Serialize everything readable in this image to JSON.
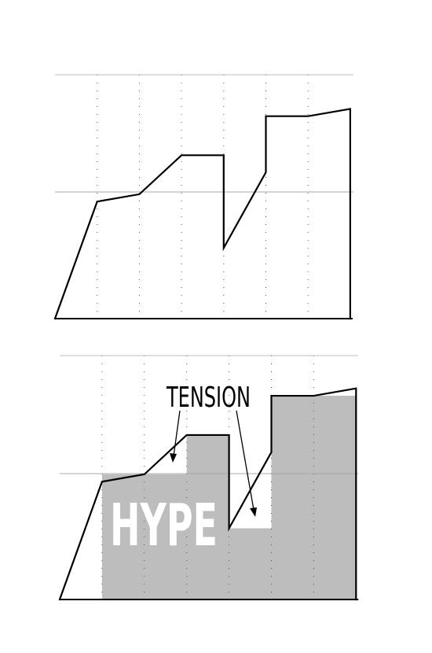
{
  "labels": {
    "hype": "HYPE",
    "tension": "TENSION"
  },
  "colors": {
    "curve": "#000000",
    "area": "#bdbdbd",
    "grid": "#555555",
    "midline": "#a8a8a8",
    "hype_text": "#ffffff"
  },
  "curve_data": {
    "x": [
      0,
      1,
      2,
      3,
      4,
      4,
      5,
      5,
      6,
      7,
      7
    ],
    "y": [
      0,
      0.48,
      0.51,
      0.67,
      0.67,
      0.29,
      0.6,
      0.83,
      0.83,
      0.86,
      0
    ],
    "area_steps": [
      {
        "from": 1,
        "to": 2,
        "level": 0.51
      },
      {
        "from": 2,
        "to": 3,
        "level": 0.51
      },
      {
        "from": 3,
        "to": 4,
        "level": 0.67
      },
      {
        "from": 4,
        "to": 5,
        "level": 0.29
      },
      {
        "from": 5,
        "to": 7,
        "level": 0.83
      }
    ],
    "columns": 7
  }
}
